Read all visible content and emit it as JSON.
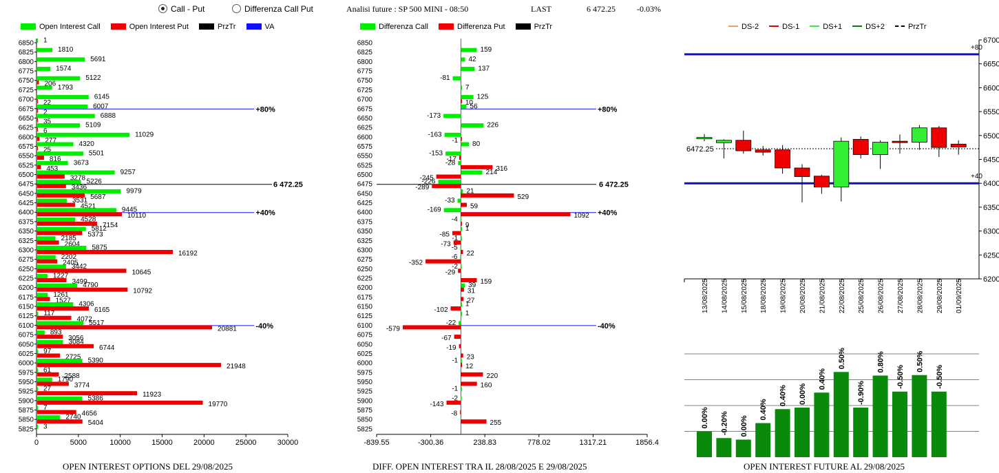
{
  "header": {
    "radio_call_put": "Call - Put",
    "radio_diff": "Differenza Call Put",
    "analysis_title": "Analisi future : SP 500 MINI - 08:50",
    "last_label": "LAST",
    "last_value": "6 472.25",
    "last_change": "-0.03%"
  },
  "colors": {
    "call": "#00ee00",
    "put": "#ee0000",
    "va": "#1010ff",
    "przt": "#000000",
    "future_bar": "#0a8a0a"
  },
  "legend_left": [
    "Open Interest Call",
    "Open Interest Put",
    "PrzTr",
    "VA"
  ],
  "legend_mid": [
    "Differenza Call",
    "Differenza Put",
    "PrzTr"
  ],
  "legend_right": [
    "DS-2",
    "DS-1",
    "DS+1",
    "DS+2",
    "PrzTr"
  ],
  "footers": {
    "left": "OPEN INTEREST OPTIONS DEL 29/08/2025",
    "mid": "DIFF. OPEN INTEREST TRA IL 28/08/2025 E 29/08/2025",
    "right": "OPEN INTEREST FUTURE AL 29/08/2025"
  },
  "chart_data": [
    {
      "type": "bar",
      "orientation": "horizontal",
      "categories": [
        "6850",
        "6825",
        "6800",
        "6775",
        "6750",
        "6725",
        "6700",
        "6675",
        "6650",
        "6625",
        "6600",
        "6575",
        "6550",
        "6525",
        "6500",
        "6475",
        "6450",
        "6425",
        "6400",
        "6375",
        "6350",
        "6325",
        "6300",
        "6275",
        "6250",
        "6225",
        "6200",
        "6175",
        "6150",
        "6125",
        "6100",
        "6075",
        "6050",
        "6025",
        "6000",
        "5975",
        "5950",
        "5925",
        "5900",
        "5875",
        "5850",
        "5825"
      ],
      "series": [
        {
          "name": "Open Interest Call",
          "values": [
            1,
            1810,
            5691,
            1574,
            5122,
            1793,
            6145,
            6007,
            6888,
            5109,
            11029,
            4320,
            5501,
            3673,
            9257,
            5226,
            9979,
            3531,
            9445,
            4528,
            5812,
            2185,
            5875,
            2202,
            3442,
            1227,
            4790,
            1261,
            4306,
            117,
            5517,
            893,
            3084,
            97,
            5390,
            61,
            1790,
            27,
            5386,
            7,
            2740,
            3
          ]
        },
        {
          "name": "Open Interest Put",
          "values": [
            null,
            null,
            null,
            null,
            206,
            null,
            22,
            2,
            35,
            6,
            277,
            25,
            816,
            453,
            3278,
            3436,
            5687,
            4521,
            10110,
            7154,
            5373,
            2604,
            16192,
            2405,
            10645,
            3499,
            10792,
            1527,
            6165,
            4072,
            20881,
            3056,
            6744,
            2725,
            21948,
            2588,
            3774,
            11923,
            19770,
            4656,
            5404,
            null
          ]
        }
      ],
      "xlim": [
        0,
        30000
      ],
      "xticks": [
        "0",
        "5000",
        "10000",
        "15000",
        "20000",
        "25000",
        "30000"
      ],
      "annotations": [
        {
          "strike": "6675",
          "label": "+80%"
        },
        {
          "strike": "6400",
          "label": "+40%"
        },
        {
          "strike": "6100",
          "label": "-40%"
        }
      ],
      "przt_label": "6 472.25",
      "przt_value": 6472.25
    },
    {
      "type": "bar",
      "orientation": "horizontal",
      "categories": [
        "6850",
        "6825",
        "6800",
        "6775",
        "6750",
        "6725",
        "6700",
        "6675",
        "6650",
        "6625",
        "6600",
        "6575",
        "6550",
        "6525",
        "6500",
        "6475",
        "6450",
        "6425",
        "6400",
        "6375",
        "6350",
        "6325",
        "6300",
        "6275",
        "6250",
        "6225",
        "6200",
        "6175",
        "6150",
        "6125",
        "6100",
        "6075",
        "6050",
        "6025",
        "6000",
        "5975",
        "5950",
        "5925",
        "5900",
        "5875",
        "5850",
        "5825"
      ],
      "series": [
        {
          "name": "Differenza Call",
          "values": [
            null,
            159,
            42,
            137,
            -81,
            7,
            125,
            56,
            -173,
            226,
            -163,
            80,
            -153,
            -28,
            214,
            -226,
            21,
            -33,
            -169,
            -4,
            1,
            -1,
            -5,
            -6,
            -2,
            null,
            39,
            null,
            1,
            1,
            -22,
            null,
            null,
            null,
            -1,
            null,
            null,
            -1,
            -2,
            null,
            null,
            null
          ]
        },
        {
          "name": "Differenza Put",
          "values": [
            null,
            null,
            null,
            null,
            null,
            null,
            10,
            null,
            null,
            null,
            -1,
            null,
            -17,
            316,
            -245,
            -289,
            529,
            59,
            1092,
            9,
            -85,
            -73,
            22,
            -352,
            -29,
            159,
            31,
            27,
            -102,
            null,
            -579,
            -67,
            -19,
            23,
            12,
            220,
            160,
            null,
            -143,
            -8,
            255,
            null
          ]
        }
      ],
      "xticks": [
        "-839.55",
        "-300.36",
        "238.83",
        "778.02",
        "1317.21",
        "1856.4"
      ],
      "xlim": [
        -839.55,
        1856.4
      ],
      "annotations": [
        {
          "strike": "6675",
          "label": "+80%"
        },
        {
          "strike": "6400",
          "label": "+40%"
        },
        {
          "strike": "6100",
          "label": "-40%"
        }
      ],
      "przt_label": "6 472.25",
      "przt_value": 6472.25
    },
    {
      "type": "candlestick",
      "x": [
        "13/08/2025",
        "14/08/2025",
        "15/08/2025",
        "18/08/2025",
        "19/08/2025",
        "20/08/2025",
        "21/08/2025",
        "22/08/2025",
        "25/08/2025",
        "26/08/2025",
        "27/08/2025",
        "28/08/2025",
        "29/08/2025",
        "01/09/2025"
      ],
      "candles": [
        {
          "o": 6496,
          "h": 6503,
          "l": 6488,
          "c": 6496
        },
        {
          "o": 6485,
          "h": 6492,
          "l": 6452,
          "c": 6490
        },
        {
          "o": 6490,
          "h": 6510,
          "l": 6462,
          "c": 6468
        },
        {
          "o": 6470,
          "h": 6478,
          "l": 6458,
          "c": 6465
        },
        {
          "o": 6470,
          "h": 6480,
          "l": 6420,
          "c": 6432
        },
        {
          "o": 6432,
          "h": 6440,
          "l": 6360,
          "c": 6414
        },
        {
          "o": 6415,
          "h": 6418,
          "l": 6378,
          "c": 6392
        },
        {
          "o": 6392,
          "h": 6496,
          "l": 6362,
          "c": 6488
        },
        {
          "o": 6492,
          "h": 6498,
          "l": 6452,
          "c": 6460
        },
        {
          "o": 6460,
          "h": 6490,
          "l": 6430,
          "c": 6486
        },
        {
          "o": 6488,
          "h": 6502,
          "l": 6462,
          "c": 6486
        },
        {
          "o": 6486,
          "h": 6522,
          "l": 6470,
          "c": 6516
        },
        {
          "o": 6516,
          "h": 6520,
          "l": 6455,
          "c": 6475
        },
        {
          "o": 6482,
          "h": 6490,
          "l": 6460,
          "c": 6476
        }
      ],
      "ylim": [
        6200,
        6700
      ],
      "yticks": [
        "6200",
        "6250",
        "6300",
        "6350",
        "6400",
        "6450",
        "6500",
        "6550",
        "6600",
        "6650",
        "6700"
      ],
      "levels": [
        {
          "value": 6670,
          "label": "+80"
        },
        {
          "value": 6400,
          "label": "+40"
        }
      ],
      "przt_label": "6472.25",
      "przt_value": 6472.25
    },
    {
      "type": "bar",
      "values": [
        0.5,
        0.37,
        0.34,
        0.66,
        0.93,
        0.96,
        1.25,
        1.65,
        0.96,
        1.58,
        1.27,
        1.59,
        1.27
      ],
      "labels": [
        "0.00%",
        "-0.20%",
        "0.00%",
        "0.40%",
        "0.40%",
        "0.00%",
        "0.40%",
        "0.50%",
        "-0.90%",
        "0.80%",
        "-0.50%",
        "0.50%",
        "-0.50%"
      ]
    }
  ]
}
